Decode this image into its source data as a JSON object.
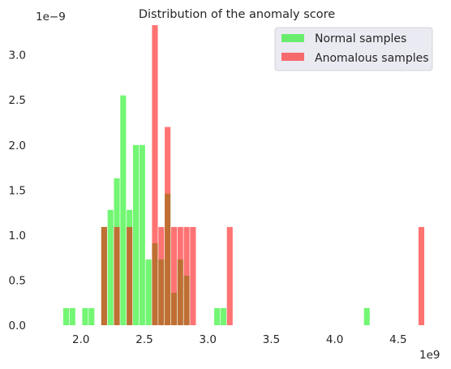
{
  "chart_data": {
    "type": "histogram",
    "title": "Distribution of the anomaly score",
    "x_offset_label": "1e9",
    "y_offset_label": "1e−9",
    "xlim": [
      1.72,
      4.75
    ],
    "ylim": [
      0,
      3.33
    ],
    "bin_width": 0.052,
    "x_ticks": [
      2.0,
      2.5,
      3.0,
      3.5,
      4.0,
      4.5
    ],
    "x_tick_labels": [
      "2.0",
      "2.5",
      "3.0",
      "3.5",
      "4.0",
      "4.5"
    ],
    "y_ticks": [
      0.0,
      0.5,
      1.0,
      1.5,
      2.0,
      2.5,
      3.0
    ],
    "y_tick_labels": [
      "0.0",
      "0.5",
      "1.0",
      "1.5",
      "2.0",
      "2.5",
      "3.0"
    ],
    "grid": false,
    "legend_position": "top-right",
    "series": [
      {
        "name": "Normal samples",
        "color": "#00ee00",
        "opacity": 0.55,
        "bins": [
          {
            "x": 1.86,
            "y": 0.19
          },
          {
            "x": 1.91,
            "y": 0.19
          },
          {
            "x": 2.01,
            "y": 0.19
          },
          {
            "x": 2.06,
            "y": 0.19
          },
          {
            "x": 2.16,
            "y": 1.09
          },
          {
            "x": 2.21,
            "y": 1.28
          },
          {
            "x": 2.26,
            "y": 1.63
          },
          {
            "x": 2.31,
            "y": 2.55
          },
          {
            "x": 2.36,
            "y": 1.28
          },
          {
            "x": 2.41,
            "y": 2.0
          },
          {
            "x": 2.46,
            "y": 2.0
          },
          {
            "x": 2.51,
            "y": 0.73
          },
          {
            "x": 2.56,
            "y": 0.91
          },
          {
            "x": 2.61,
            "y": 0.73
          },
          {
            "x": 2.66,
            "y": 1.46
          },
          {
            "x": 2.71,
            "y": 0.36
          },
          {
            "x": 2.76,
            "y": 0.73
          },
          {
            "x": 2.81,
            "y": 0.55
          },
          {
            "x": 3.05,
            "y": 0.19
          },
          {
            "x": 3.1,
            "y": 0.19
          },
          {
            "x": 4.23,
            "y": 0.19
          }
        ]
      },
      {
        "name": "Anomalous samples",
        "color": "#ff0000",
        "opacity": 0.55,
        "bins": [
          {
            "x": 2.16,
            "y": 1.09
          },
          {
            "x": 2.26,
            "y": 1.09
          },
          {
            "x": 2.36,
            "y": 1.09
          },
          {
            "x": 2.56,
            "y": 3.33
          },
          {
            "x": 2.61,
            "y": 1.09
          },
          {
            "x": 2.66,
            "y": 2.2
          },
          {
            "x": 2.71,
            "y": 1.09
          },
          {
            "x": 2.76,
            "y": 1.09
          },
          {
            "x": 2.81,
            "y": 1.09
          },
          {
            "x": 2.86,
            "y": 1.09
          },
          {
            "x": 3.15,
            "y": 1.09
          },
          {
            "x": 4.66,
            "y": 1.09
          }
        ]
      }
    ]
  }
}
